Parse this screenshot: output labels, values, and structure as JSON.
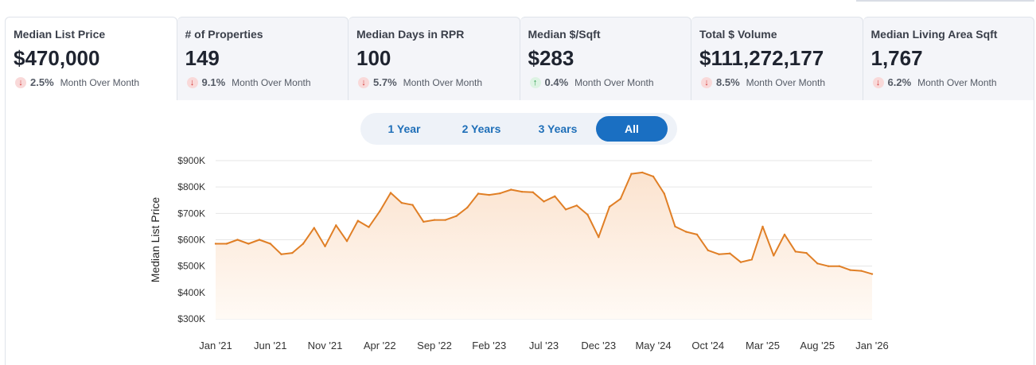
{
  "stats": [
    {
      "label": "Median List Price",
      "value": "$470,000",
      "direction": "down",
      "pct": "2.5%",
      "period": "Month Over Month",
      "active": true
    },
    {
      "label": "# of Properties",
      "value": "149",
      "direction": "down",
      "pct": "9.1%",
      "period": "Month Over Month",
      "active": false
    },
    {
      "label": "Median Days in RPR",
      "value": "100",
      "direction": "down",
      "pct": "5.7%",
      "period": "Month Over Month",
      "active": false
    },
    {
      "label": "Median $/Sqft",
      "value": "$283",
      "direction": "up",
      "pct": "0.4%",
      "period": "Month Over Month",
      "active": false
    },
    {
      "label": "Total $ Volume",
      "value": "$111,272,177",
      "direction": "down",
      "pct": "8.5%",
      "period": "Month Over Month",
      "active": false
    },
    {
      "label": "Median Living Area Sqft",
      "value": "1,767",
      "direction": "down",
      "pct": "6.2%",
      "period": "Month Over Month",
      "active": false
    }
  ],
  "range_buttons": [
    "1 Year",
    "2 Years",
    "3 Years",
    "All"
  ],
  "selected_range": "All",
  "colors": {
    "line": "#e07f26",
    "fill_top": "#fbe3cf",
    "fill_bottom": "#fffaf5",
    "grid": "#e6e6e6",
    "accent": "#1a6fc2"
  },
  "chart_data": {
    "type": "area",
    "ylabel": "Median List Price",
    "ylim": [
      300000,
      900000
    ],
    "y_ticks": [
      "$300K",
      "$400K",
      "$500K",
      "$600K",
      "$700K",
      "$800K",
      "$900K"
    ],
    "x_tick_labels": [
      "Jan '21",
      "Jun '21",
      "Nov '21",
      "Apr '22",
      "Sep '22",
      "Feb '23",
      "Jul '23",
      "Dec '23",
      "May '24",
      "Oct '24",
      "Mar '25",
      "Aug '25",
      "Jan '26"
    ],
    "x": [
      "2021-01",
      "2021-02",
      "2021-03",
      "2021-04",
      "2021-05",
      "2021-06",
      "2021-07",
      "2021-08",
      "2021-09",
      "2021-10",
      "2021-11",
      "2021-12",
      "2022-01",
      "2022-02",
      "2022-03",
      "2022-04",
      "2022-05",
      "2022-06",
      "2022-07",
      "2022-08",
      "2022-09",
      "2022-10",
      "2022-11",
      "2022-12",
      "2023-01",
      "2023-02",
      "2023-03",
      "2023-04",
      "2023-05",
      "2023-06",
      "2023-07",
      "2023-08",
      "2023-09",
      "2023-10",
      "2023-11",
      "2023-12",
      "2024-01",
      "2024-02",
      "2024-03",
      "2024-04",
      "2024-05",
      "2024-06",
      "2024-07",
      "2024-08",
      "2024-09",
      "2024-10",
      "2024-11",
      "2024-12",
      "2025-01",
      "2025-02",
      "2025-03",
      "2025-04",
      "2025-05",
      "2025-06",
      "2025-07",
      "2025-08",
      "2025-09",
      "2025-10",
      "2025-11",
      "2025-12",
      "2026-01"
    ],
    "values": [
      585000,
      585000,
      600000,
      585000,
      600000,
      585000,
      545000,
      550000,
      585000,
      645000,
      575000,
      655000,
      595000,
      672000,
      648000,
      708000,
      778000,
      740000,
      732000,
      668000,
      675000,
      675000,
      690000,
      722000,
      775000,
      770000,
      776000,
      790000,
      782000,
      780000,
      745000,
      765000,
      715000,
      730000,
      695000,
      610000,
      725000,
      755000,
      850000,
      855000,
      840000,
      775000,
      650000,
      630000,
      620000,
      560000,
      545000,
      548000,
      515000,
      525000,
      650000,
      540000,
      620000,
      555000,
      550000,
      510000,
      500000,
      500000,
      485000,
      482000,
      470000
    ]
  }
}
